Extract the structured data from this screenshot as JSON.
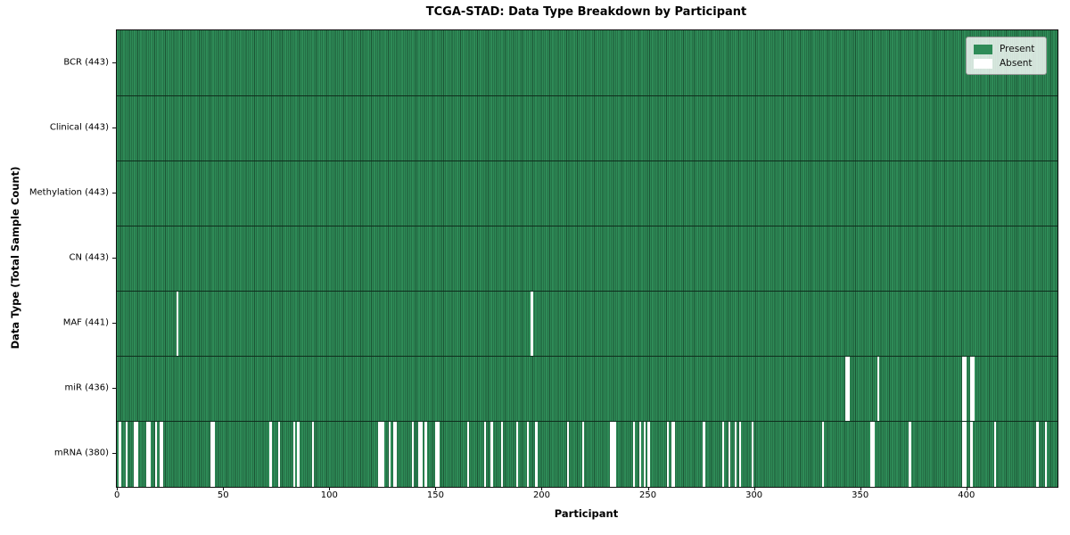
{
  "title": "TCGA-STAD: Data Type Breakdown by Participant",
  "axes": {
    "xlabel": "Participant",
    "ylabel": "Data Type (Total Sample Count)",
    "xticks": [
      0,
      50,
      100,
      150,
      200,
      250,
      300,
      350,
      400
    ]
  },
  "legend": {
    "items": [
      {
        "label": "Present",
        "color": "#2e8b57"
      },
      {
        "label": "Absent",
        "color": "#ffffff"
      }
    ]
  },
  "chart_data": {
    "type": "heatmap",
    "title": "TCGA-STAD: Data Type Breakdown by Participant",
    "xlabel": "Participant",
    "ylabel": "Data Type (Total Sample Count)",
    "n_participants": 443,
    "x_range": [
      0,
      443
    ],
    "legend": [
      "Present",
      "Absent"
    ],
    "colors": {
      "present": "#2e8b57",
      "present_edge": "#1c5535",
      "absent": "#ffffff"
    },
    "grid": false,
    "legend_position": "upper right",
    "rows": [
      {
        "data_type": "BCR",
        "label": "BCR (443)",
        "present_count": 443,
        "absent_participants": []
      },
      {
        "data_type": "Clinical",
        "label": "Clinical (443)",
        "present_count": 443,
        "absent_participants": []
      },
      {
        "data_type": "Methylation",
        "label": "Methylation (443)",
        "present_count": 443,
        "absent_participants": []
      },
      {
        "data_type": "CN",
        "label": "CN (443)",
        "present_count": 443,
        "absent_participants": []
      },
      {
        "data_type": "MAF",
        "label": "MAF (441)",
        "present_count": 441,
        "absent_participants": [
          28,
          195
        ]
      },
      {
        "data_type": "miR",
        "label": "miR (436)",
        "present_count": 436,
        "absent_participants": [
          343,
          344,
          358,
          398,
          399,
          402,
          403
        ]
      },
      {
        "data_type": "mRNA",
        "label": "mRNA (380)",
        "present_count": 380,
        "absent_participants": [
          1,
          4,
          8,
          9,
          14,
          15,
          18,
          20,
          21,
          44,
          45,
          72,
          76,
          83,
          85,
          92,
          123,
          124,
          125,
          128,
          130,
          131,
          139,
          142,
          143,
          145,
          150,
          151,
          165,
          173,
          176,
          181,
          188,
          193,
          197,
          212,
          219,
          232,
          233,
          234,
          243,
          246,
          248,
          250,
          259,
          261,
          262,
          276,
          285,
          288,
          291,
          293,
          299,
          332,
          355,
          356,
          373,
          398,
          399,
          402,
          413,
          433,
          437
        ]
      }
    ]
  }
}
